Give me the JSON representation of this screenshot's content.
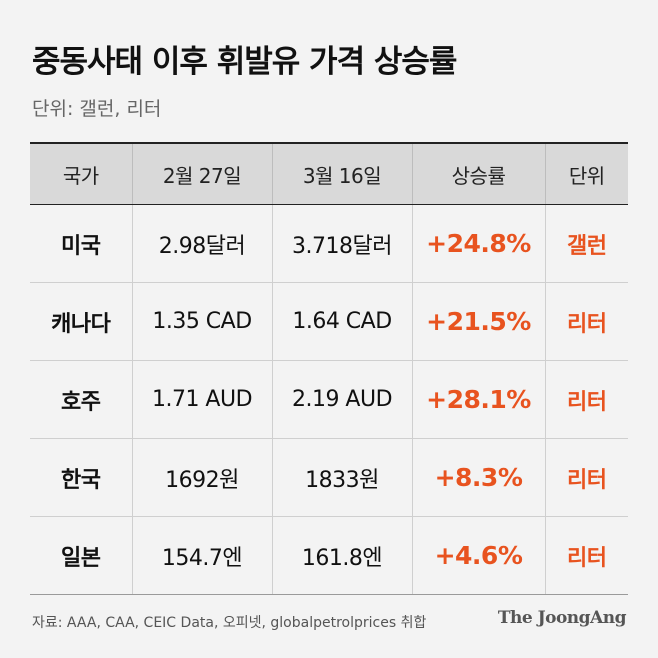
{
  "title": "중동사태 이후 휘발유 가격 상승률",
  "subtitle": "단위: 갤런, 리터",
  "table": {
    "headers": [
      "국가",
      "2월 27일",
      "3월 16일",
      "상승률",
      "단위"
    ],
    "rows": [
      [
        "미국",
        "2.98달러",
        "3.718달러",
        "+24.8%",
        "갤런"
      ],
      [
        "캐나다",
        "1.35 CAD",
        "1.64 CAD",
        "+21.5%",
        "리터"
      ],
      [
        "호주",
        "1.71 AUD",
        "2.19 AUD",
        "+28.1%",
        "리터"
      ],
      [
        "한국",
        "1692원",
        "1833원",
        "+8.3%",
        "리터"
      ],
      [
        "일본",
        "154.7엔",
        "161.8엔",
        "+4.6%",
        "리터"
      ]
    ]
  },
  "source": "자료: AAA, CAA, CEIC Data, 오피넷, globalpetrolprices 취합",
  "logo": "The JoongAng",
  "colors": {
    "background": "#f3f3f3",
    "header_bg": "#d9d9d9",
    "accent": "#e8531f",
    "text": "#111111"
  }
}
